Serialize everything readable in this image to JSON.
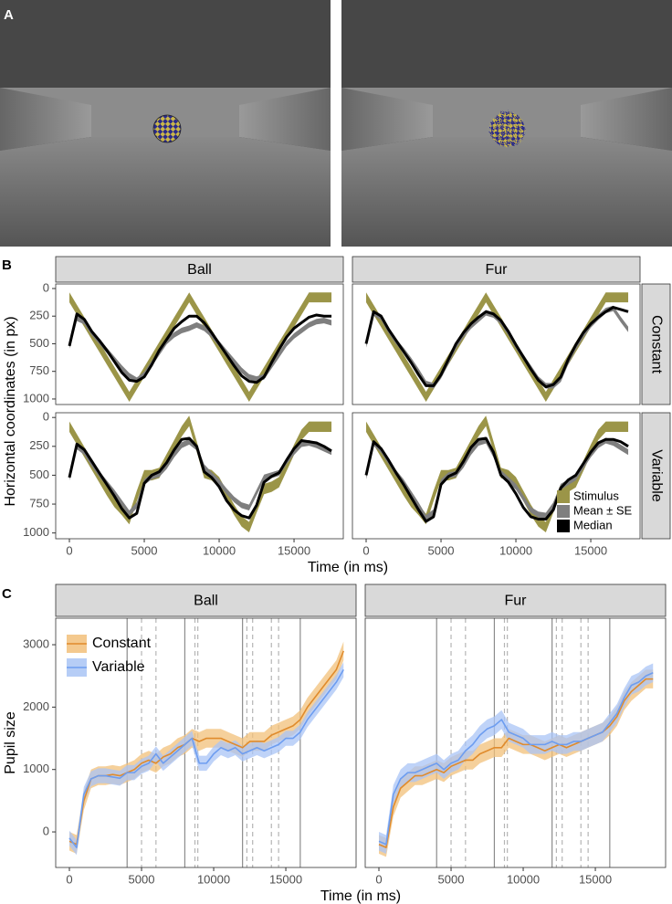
{
  "panel_labels": [
    "A",
    "B",
    "C"
  ],
  "chart_data": [
    {
      "type": "line",
      "xlabel": "Time (in ms)",
      "ylabel": "Horizontal coordinates (in px)",
      "x": [
        0,
        500,
        1000,
        1500,
        2000,
        2500,
        3000,
        3500,
        4000,
        4500,
        5000,
        5500,
        6000,
        6500,
        7000,
        7500,
        8000,
        8500,
        9000,
        9500,
        10000,
        10500,
        11000,
        11500,
        12000,
        12500,
        13000,
        13500,
        14000,
        14500,
        15000,
        15500,
        16000,
        16500,
        17000,
        17500
      ],
      "xlim": [
        -915,
        18290
      ],
      "xticks": [
        0,
        5000,
        10000,
        15000
      ],
      "ylim": [
        -41,
        1050
      ],
      "y_reversed": true,
      "yticks": [
        0,
        250,
        500,
        750,
        1000
      ],
      "columns": [
        "Ball",
        "Fur"
      ],
      "rows": [
        "Constant",
        "Variable"
      ],
      "series": [
        {
          "name": "Stimulus",
          "color": "#9b9548",
          "style": "band"
        },
        {
          "name": "Mean ± SE",
          "color": "#7f7f7f",
          "style": "band"
        },
        {
          "name": "Median",
          "color": "#000000",
          "style": "line"
        }
      ],
      "legend": "bottom-right",
      "panels": [
        {
          "column": 0,
          "row": 0,
          "series": [
            {
              "values": [
                80,
                193,
                305,
                418,
                530,
                643,
                755,
                868,
                980,
                868,
                755,
                643,
                530,
                418,
                305,
                193,
                80,
                193,
                305,
                418,
                530,
                643,
                755,
                868,
                980,
                868,
                755,
                643,
                530,
                418,
                305,
                193,
                80,
                80,
                80,
                80
              ],
              "half_width": 45
            },
            {
              "values": [
                520,
                270,
                300,
                400,
                480,
                560,
                640,
                720,
                790,
                830,
                780,
                680,
                580,
                480,
                420,
                380,
                360,
                330,
                360,
                420,
                500,
                580,
                660,
                740,
                800,
                820,
                800,
                700,
                600,
                500,
                430,
                380,
                330,
                300,
                290,
                310
              ],
              "half_width": 25
            },
            {
              "values": [
                520,
                230,
                280,
                390,
                470,
                560,
                660,
                760,
                830,
                840,
                800,
                690,
                560,
                460,
                360,
                300,
                250,
                250,
                310,
                400,
                500,
                600,
                700,
                790,
                840,
                850,
                800,
                670,
                550,
                440,
                360,
                310,
                260,
                240,
                250,
                250
              ]
            }
          ]
        },
        {
          "column": 1,
          "row": 0,
          "series": [
            {
              "values": [
                80,
                193,
                305,
                418,
                530,
                643,
                755,
                868,
                980,
                868,
                755,
                643,
                530,
                418,
                305,
                193,
                80,
                193,
                305,
                418,
                530,
                643,
                755,
                868,
                980,
                868,
                755,
                643,
                530,
                418,
                305,
                193,
                80,
                80,
                80,
                80
              ],
              "half_width": 45
            },
            {
              "values": [
                510,
                220,
                260,
                380,
                480,
                560,
                650,
                750,
                860,
                880,
                790,
                660,
                520,
                420,
                340,
                280,
                220,
                240,
                300,
                400,
                520,
                620,
                720,
                820,
                880,
                880,
                820,
                660,
                530,
                420,
                330,
                260,
                200,
                180,
                280,
                370
              ],
              "half_width": 25
            },
            {
              "values": [
                500,
                210,
                250,
                370,
                470,
                570,
                670,
                780,
                880,
                880,
                780,
                640,
                500,
                400,
                320,
                260,
                210,
                230,
                290,
                390,
                510,
                620,
                730,
                830,
                890,
                870,
                800,
                640,
                510,
                400,
                320,
                260,
                210,
                170,
                190,
                210
              ]
            }
          ]
        },
        {
          "column": 0,
          "row": 1,
          "series": [
            {
              "values": [
                80,
                190,
                300,
                410,
                520,
                630,
                730,
                800,
                880,
                680,
                500,
                500,
                480,
                360,
                240,
                120,
                30,
                250,
                480,
                500,
                560,
                680,
                800,
                900,
                950,
                780,
                620,
                600,
                560,
                420,
                280,
                150,
                80,
                80,
                80,
                80
              ],
              "half_width": 45
            },
            {
              "values": [
                520,
                250,
                300,
                400,
                490,
                570,
                650,
                740,
                830,
                760,
                560,
                510,
                490,
                420,
                320,
                240,
                210,
                260,
                430,
                500,
                560,
                640,
                710,
                760,
                780,
                650,
                520,
                500,
                480,
                380,
                300,
                230,
                220,
                240,
                270,
                300
              ],
              "half_width": 25
            },
            {
              "values": [
                520,
                230,
                280,
                380,
                480,
                580,
                680,
                790,
                870,
                830,
                570,
                500,
                470,
                390,
                280,
                190,
                180,
                250,
                470,
                520,
                600,
                720,
                800,
                850,
                870,
                760,
                560,
                510,
                480,
                370,
                270,
                200,
                210,
                220,
                250,
                290
              ]
            }
          ]
        },
        {
          "column": 1,
          "row": 1,
          "series": [
            {
              "values": [
                80,
                190,
                300,
                410,
                520,
                630,
                730,
                800,
                880,
                680,
                500,
                500,
                480,
                360,
                240,
                120,
                30,
                250,
                480,
                500,
                560,
                680,
                800,
                900,
                950,
                780,
                620,
                600,
                560,
                420,
                280,
                150,
                80,
                80,
                80,
                80
              ],
              "half_width": 45
            },
            {
              "values": [
                510,
                220,
                280,
                380,
                480,
                560,
                660,
                760,
                870,
                820,
                560,
                500,
                490,
                410,
                300,
                220,
                200,
                320,
                480,
                540,
                600,
                700,
                800,
                840,
                850,
                760,
                600,
                560,
                520,
                420,
                320,
                240,
                200,
                220,
                260,
                300
              ],
              "half_width": 25
            },
            {
              "values": [
                500,
                210,
                270,
                370,
                480,
                580,
                690,
                800,
                900,
                860,
                580,
                510,
                480,
                380,
                260,
                190,
                180,
                300,
                500,
                560,
                660,
                780,
                860,
                880,
                880,
                800,
                610,
                540,
                500,
                400,
                300,
                220,
                190,
                190,
                210,
                250
              ]
            }
          ]
        }
      ]
    },
    {
      "type": "line",
      "xlabel": "Time (in ms)",
      "ylabel": "Pupil size",
      "x": [
        0,
        500,
        1000,
        1500,
        2000,
        2500,
        3000,
        3500,
        4000,
        4500,
        5000,
        5500,
        6000,
        6500,
        7000,
        7500,
        8000,
        8500,
        9000,
        9500,
        10000,
        10500,
        11000,
        11500,
        12000,
        12500,
        13000,
        13500,
        14000,
        14500,
        15000,
        15500,
        16000,
        16500,
        17000,
        17500,
        18000,
        18500,
        19000
      ],
      "xlim": [
        -950,
        19870
      ],
      "xticks": [
        0,
        5000,
        10000,
        15000
      ],
      "ylim": [
        -570,
        3425
      ],
      "yticks": [
        0,
        1000,
        2000,
        3000
      ],
      "columns": [
        "Ball",
        "Fur"
      ],
      "series": [
        {
          "name": "Constant",
          "color": "#e08b2c",
          "fill": "#f2c07a",
          "style": "band+line"
        },
        {
          "name": "Variable",
          "color": "#6d9df0",
          "fill": "#a9c4f5",
          "style": "band+line"
        }
      ],
      "legend": "top-left",
      "vlines_solid": [
        4000,
        8000,
        12000,
        16000
      ],
      "vlines_dashed": [
        5000,
        6000,
        8700,
        8900,
        12300,
        12700,
        14000,
        14500
      ],
      "panels": [
        {
          "column": 0,
          "series": [
            {
              "values": [
                -150,
                -200,
                500,
                850,
                900,
                900,
                920,
                900,
                950,
                1000,
                1100,
                1150,
                1100,
                1200,
                1250,
                1350,
                1400,
                1500,
                1450,
                1500,
                1500,
                1500,
                1450,
                1400,
                1350,
                1450,
                1450,
                1450,
                1550,
                1600,
                1650,
                1700,
                1800,
                2000,
                2150,
                2300,
                2450,
                2600,
                2900
              ],
              "half_width": 150
            },
            {
              "values": [
                -100,
                -250,
                600,
                850,
                900,
                900,
                880,
                860,
                950,
                950,
                1050,
                1100,
                1250,
                1100,
                1200,
                1300,
                1400,
                1500,
                1100,
                1100,
                1250,
                1350,
                1300,
                1350,
                1250,
                1300,
                1350,
                1300,
                1350,
                1400,
                1500,
                1500,
                1600,
                1800,
                1950,
                2100,
                2250,
                2400,
                2600
              ],
              "half_width": 120
            }
          ]
        },
        {
          "column": 1,
          "series": [
            {
              "values": [
                -200,
                -250,
                400,
                700,
                800,
                900,
                900,
                950,
                1000,
                950,
                1050,
                1100,
                1150,
                1150,
                1250,
                1300,
                1350,
                1350,
                1500,
                1450,
                1400,
                1400,
                1350,
                1300,
                1350,
                1400,
                1350,
                1400,
                1450,
                1500,
                1550,
                1600,
                1700,
                1850,
                2100,
                2250,
                2350,
                2450,
                2450
              ],
              "half_width": 150
            },
            {
              "values": [
                -150,
                -200,
                600,
                850,
                950,
                950,
                1000,
                1050,
                1100,
                1000,
                1100,
                1150,
                1300,
                1400,
                1550,
                1650,
                1700,
                1800,
                1600,
                1550,
                1500,
                1400,
                1400,
                1400,
                1450,
                1400,
                1400,
                1450,
                1450,
                1500,
                1550,
                1600,
                1750,
                1900,
                2150,
                2350,
                2400,
                2500,
                2550
              ],
              "half_width": 150
            }
          ]
        }
      ]
    }
  ]
}
